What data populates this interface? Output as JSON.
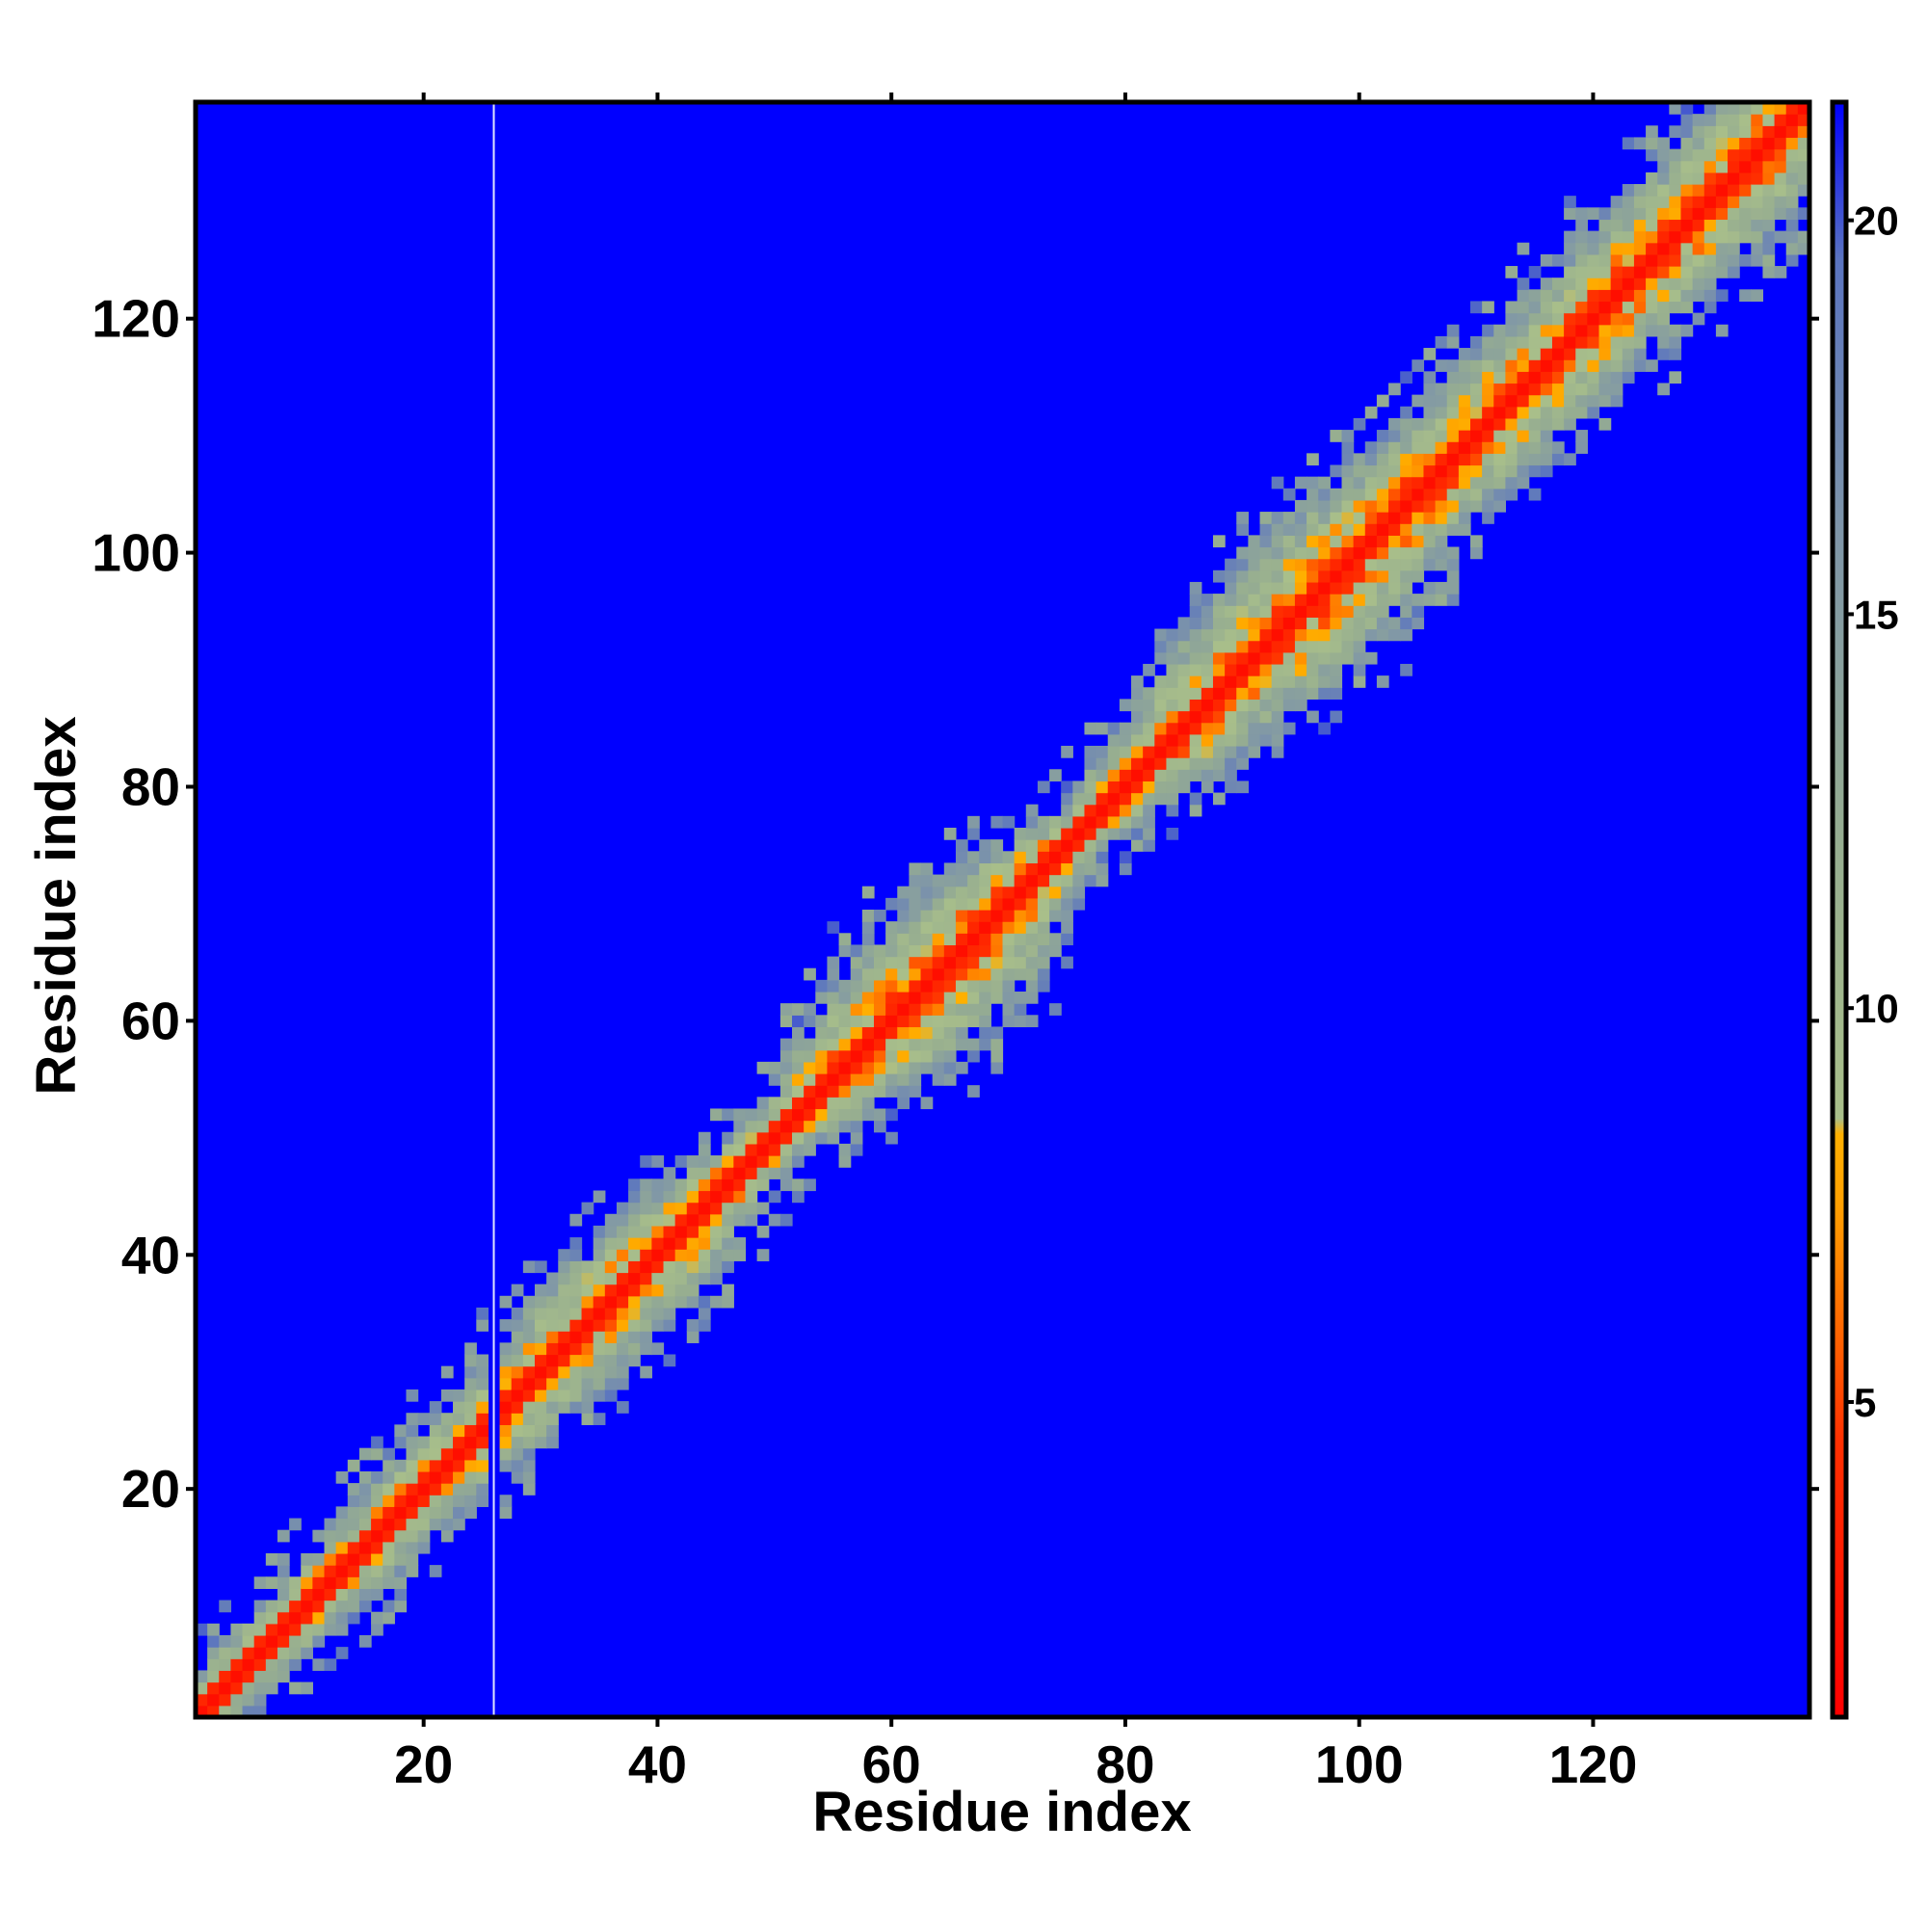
{
  "chart_data": {
    "type": "heatmap",
    "title": "",
    "xlabel": "Residue index",
    "ylabel": "Residue index",
    "n_residues": 138,
    "xlim": [
      1,
      138
    ],
    "ylim": [
      1,
      138
    ],
    "x_ticks": [
      20,
      40,
      60,
      80,
      100,
      120
    ],
    "y_ticks": [
      20,
      40,
      60,
      80,
      100,
      120
    ],
    "colorbar": {
      "ticks": [
        5,
        10,
        15,
        20
      ],
      "range": [
        1,
        21.5
      ],
      "stops": [
        {
          "value": 1.0,
          "color": "#ff0000"
        },
        {
          "value": 4.5,
          "color": "#ff3000"
        },
        {
          "value": 6.0,
          "color": "#ff6a00"
        },
        {
          "value": 7.5,
          "color": "#ffa000"
        },
        {
          "value": 8.4,
          "color": "#ffb000"
        },
        {
          "value": 8.6,
          "color": "#a9bf8a"
        },
        {
          "value": 12.0,
          "color": "#97ae90"
        },
        {
          "value": 16.0,
          "color": "#7f96a8"
        },
        {
          "value": 19.5,
          "color": "#5a74c0"
        },
        {
          "value": 21.5,
          "color": "#0000ff"
        }
      ]
    },
    "background_color": "#0000ff",
    "contact_band_halfwidth_profile": [
      {
        "residue": 1,
        "halfwidth": 4
      },
      {
        "residue": 20,
        "halfwidth": 6
      },
      {
        "residue": 30,
        "halfwidth": 7
      },
      {
        "residue": 40,
        "halfwidth": 8
      },
      {
        "residue": 50,
        "halfwidth": 4
      },
      {
        "residue": 60,
        "halfwidth": 10
      },
      {
        "residue": 68,
        "halfwidth": 10
      },
      {
        "residue": 76,
        "halfwidth": 4
      },
      {
        "residue": 85,
        "halfwidth": 8
      },
      {
        "residue": 97,
        "halfwidth": 11
      },
      {
        "residue": 108,
        "halfwidth": 8
      },
      {
        "residue": 120,
        "halfwidth": 9
      },
      {
        "residue": 138,
        "halfwidth": 9
      }
    ],
    "gap_column_residue": 26
  }
}
